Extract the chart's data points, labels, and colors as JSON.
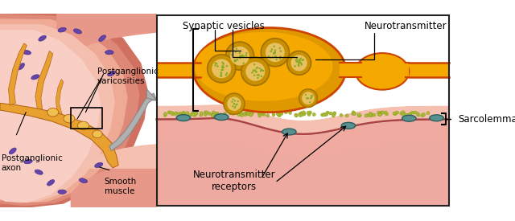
{
  "bg_color": "#ffffff",
  "left_panel": {
    "muscle_colors": [
      "#cc6655",
      "#dd8877",
      "#ee9988",
      "#f5b8a8",
      "#f8ccc0"
    ],
    "axon_fill": "#e8a030",
    "axon_border": "#b06010",
    "varicosity_fill": "#f0c050",
    "nucleus_color": "#6644aa",
    "nucleus_border": "#443388",
    "label_pg_var": "Postganglionic\nvaricosities",
    "label_pg_axon": "Postganglionic\naxon",
    "label_smooth": "Smooth\nmuscle"
  },
  "right_panel": {
    "border_color": "#222222",
    "axon_fill": "#f5a800",
    "axon_fill2": "#e09800",
    "axon_border": "#cc4400",
    "axon_highlight": "#ffd060",
    "vesicle_ring": "#c89000",
    "vesicle_fill": "#e8c060",
    "vesicle_dot_color": "#88aa22",
    "nt_dot_color": "#aabb33",
    "nt_dot_edge": "#889922",
    "muscle_top": "#f5c0b0",
    "muscle_mid": "#f0aaa0",
    "muscle_body": "#eeaaa0",
    "muscle_line": "#aa4444",
    "receptor_fill": "#5a9090",
    "receptor_border": "#2a5f5f",
    "label_synaptic": "Synaptic vesicles",
    "label_neurotransmitter": "Neurotransmitter",
    "label_nt_receptors": "Neurotransmitter\nreceptors",
    "label_sarcolemma": "Sarcolemma"
  },
  "arrow_fill": "#b0b0b0",
  "arrow_edge": "#888888"
}
